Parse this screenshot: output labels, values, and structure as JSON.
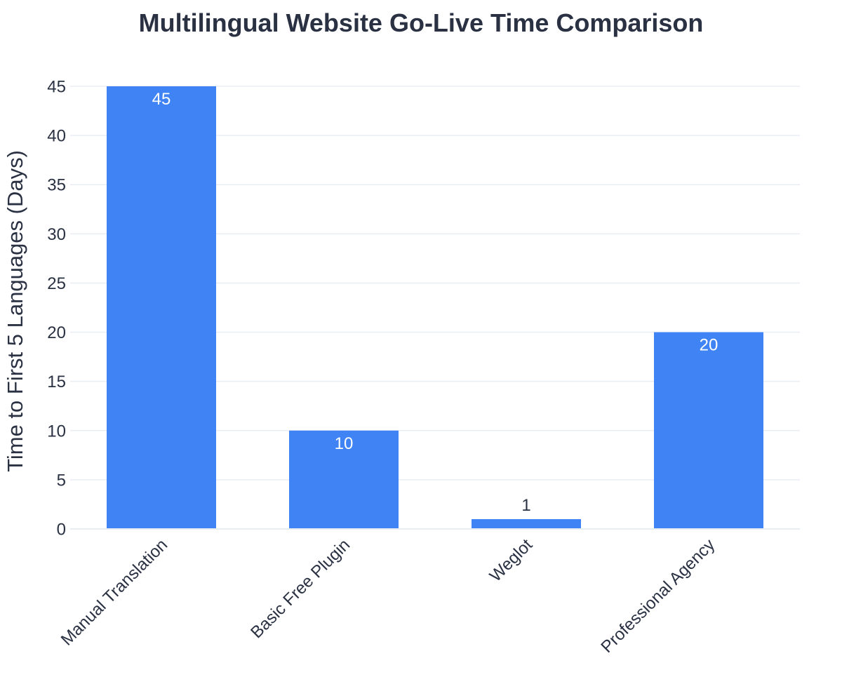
{
  "chart_data": {
    "type": "bar",
    "title": "Multilingual Website Go-Live Time Comparison",
    "xlabel": "",
    "ylabel": "Time to First 5 Languages (Days)",
    "categories": [
      "Manual Translation",
      "Basic Free Plugin",
      "Weglot",
      "Professional Agency"
    ],
    "values": [
      45,
      10,
      1,
      20
    ],
    "ylim": [
      0,
      45
    ],
    "yticks": [
      0,
      5,
      10,
      15,
      20,
      25,
      30,
      35,
      40,
      45
    ],
    "grid": true,
    "legend": "none",
    "colors": {
      "bar": "#3f83f4",
      "text": "#2a3142",
      "grid": "#e8edf4",
      "label_inside": "#ffffff"
    }
  }
}
